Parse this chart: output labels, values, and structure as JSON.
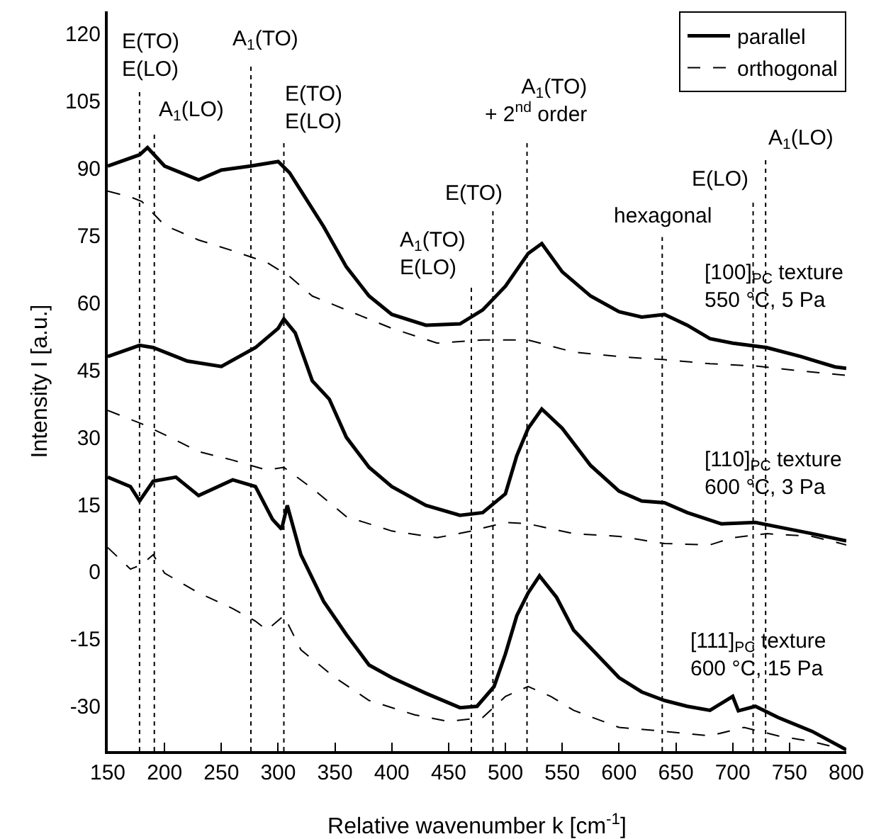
{
  "chart_data": {
    "type": "line",
    "xlabel": "Relative wavenumber k [cm$^{-1}$]",
    "ylabel": "Intensity I [a.u.]",
    "xlim": [
      150,
      800
    ],
    "ylim": [
      -40,
      125
    ],
    "xticks": [
      150,
      200,
      250,
      300,
      350,
      400,
      450,
      500,
      550,
      600,
      650,
      700,
      750,
      800
    ],
    "yticks": [
      -30,
      -15,
      0,
      15,
      30,
      45,
      60,
      75,
      90,
      105,
      120
    ],
    "legend": "top right",
    "series": [
      {
        "name": "parallel",
        "color": "#000000",
        "line_style": "solid",
        "x": [
          150,
          178,
          185,
          200,
          230,
          250,
          276,
          300,
          310,
          320,
          340,
          360,
          380,
          400,
          430,
          460,
          480,
          500,
          520,
          532,
          550,
          575,
          600,
          620,
          640,
          660,
          680,
          700,
          730,
          760,
          790,
          800
        ],
        "values": [
          90.5,
          93,
          94.6,
          90.5,
          87.4,
          89.6,
          90.5,
          91.5,
          89,
          85,
          77,
          68,
          61.5,
          57.4,
          55,
          55.3,
          58.4,
          63.7,
          71,
          73.2,
          66.9,
          61.5,
          58,
          56.8,
          57.4,
          55,
          52,
          51,
          50,
          48,
          45.7,
          45.4
        ]
      },
      {
        "name": "orthogonal",
        "color": "#000000",
        "line_style": "dashed",
        "x": [
          150,
          170,
          180,
          200,
          230,
          260,
          290,
          310,
          330,
          360,
          400,
          440,
          480,
          520,
          560,
          600,
          640,
          680,
          720,
          760,
          800
        ],
        "values": [
          84.9,
          83.6,
          82.6,
          77.3,
          74,
          71.6,
          69,
          65.9,
          61.5,
          58.4,
          54.3,
          51,
          51.7,
          51.7,
          49,
          48,
          47.3,
          46.4,
          45.9,
          44.8,
          43.8
        ]
      },
      {
        "color": "#000000",
        "line_style": "solid",
        "x": [
          150,
          178,
          190,
          220,
          250,
          280,
          300,
          305,
          315,
          330,
          345,
          360,
          380,
          400,
          430,
          460,
          480,
          500,
          510,
          520,
          532,
          550,
          575,
          600,
          620,
          640,
          660,
          690,
          720,
          740,
          770,
          800
        ],
        "values": [
          48,
          50.5,
          50,
          47,
          45.8,
          50,
          54.3,
          56.4,
          53.3,
          42.6,
          38.5,
          30,
          23.3,
          19,
          14.8,
          12.6,
          13.2,
          17.4,
          25.9,
          32,
          36.3,
          32,
          23.7,
          18,
          15.8,
          15.4,
          13.2,
          10.7,
          11,
          10,
          8.5,
          6.9
        ]
      },
      {
        "color": "#000000",
        "line_style": "dashed",
        "x": [
          150,
          180,
          200,
          230,
          260,
          290,
          305,
          330,
          360,
          400,
          440,
          470,
          500,
          520,
          560,
          600,
          640,
          680,
          700,
          730,
          770,
          800
        ],
        "values": [
          36,
          33,
          30.6,
          26.8,
          24.9,
          22.7,
          23.3,
          18.6,
          12.3,
          9.1,
          7.6,
          9.1,
          11,
          10.7,
          8.5,
          7.9,
          6.3,
          6,
          7.6,
          8.5,
          7.9,
          6
        ]
      },
      {
        "color": "#000000",
        "line_style": "solid",
        "x": [
          150,
          170,
          178,
          190,
          210,
          230,
          260,
          280,
          295,
          303,
          308,
          320,
          340,
          360,
          380,
          400,
          430,
          460,
          475,
          490,
          500,
          510,
          520,
          530,
          545,
          560,
          580,
          600,
          620,
          640,
          660,
          680,
          700,
          705,
          720,
          740,
          770,
          800
        ],
        "values": [
          21.1,
          19,
          15.8,
          20.2,
          21.1,
          17,
          20.5,
          19,
          11.7,
          9.5,
          14.8,
          3.8,
          -6.6,
          -14,
          -20.8,
          -23.6,
          -27.1,
          -30.3,
          -30,
          -25.6,
          -18.3,
          -9.8,
          -4.7,
          -0.9,
          -5.7,
          -13,
          -18.3,
          -23.6,
          -26.8,
          -28.7,
          -30,
          -30.9,
          -27.8,
          -31,
          -30,
          -32.5,
          -35.6,
          -39.7
        ]
      },
      {
        "color": "#000000",
        "line_style": "dashed",
        "x": [
          150,
          170,
          180,
          190,
          200,
          230,
          260,
          280,
          290,
          305,
          320,
          350,
          380,
          420,
          450,
          480,
          500,
          520,
          540,
          560,
          600,
          640,
          680,
          710,
          740,
          770,
          800
        ],
        "values": [
          5.4,
          0.6,
          1.6,
          3.8,
          -0.3,
          -4.7,
          -8.2,
          -11,
          -13,
          -9.8,
          -17.4,
          -23.6,
          -28.7,
          -31.9,
          -33.4,
          -32.5,
          -27.8,
          -25.6,
          -27.8,
          -30.9,
          -34.7,
          -35.6,
          -36.6,
          -34.7,
          -36.6,
          -37.9,
          -39.7
        ]
      }
    ],
    "ref_lines": [
      {
        "axis": "x",
        "value": 178,
        "color": "#000000",
        "line_style": "dotted"
      },
      {
        "axis": "x",
        "value": 191,
        "color": "#000000",
        "line_style": "dotted"
      },
      {
        "axis": "x",
        "value": 276,
        "color": "#000000",
        "line_style": "dotted"
      },
      {
        "axis": "x",
        "value": 305,
        "color": "#000000",
        "line_style": "dotted"
      },
      {
        "axis": "x",
        "value": 470,
        "color": "#000000",
        "line_style": "dotted"
      },
      {
        "axis": "x",
        "value": 489,
        "color": "#000000",
        "line_style": "dotted"
      },
      {
        "axis": "x",
        "value": 519,
        "color": "#000000",
        "line_style": "dotted"
      },
      {
        "axis": "x",
        "value": 638,
        "color": "#000000",
        "line_style": "dotted"
      },
      {
        "axis": "x",
        "value": 718,
        "color": "#000000",
        "line_style": "dotted"
      },
      {
        "axis": "x",
        "value": 729,
        "color": "#000000",
        "line_style": "dotted"
      }
    ],
    "annotations": [
      "E(TO)\nE(LO)",
      "A$_{1}$(LO)",
      "A$_{1}$(TO)",
      "E(TO)\nE(LO)",
      "A$_{1}$(TO)\nE(LO)",
      "E(TO)",
      "A$_{1}$(TO)\n+ 2$^{nd}$ order",
      "hexagonal",
      "E(LO)",
      "A$_{1}$(LO)",
      "[100]$_{PC}$ texture\n550 °C, 5 Pa",
      "[110]$_{PC}$ texture\n600 °C, 3 Pa",
      "[111]$_{PC}$ texture\n600 °C, 15 Pa"
    ]
  }
}
